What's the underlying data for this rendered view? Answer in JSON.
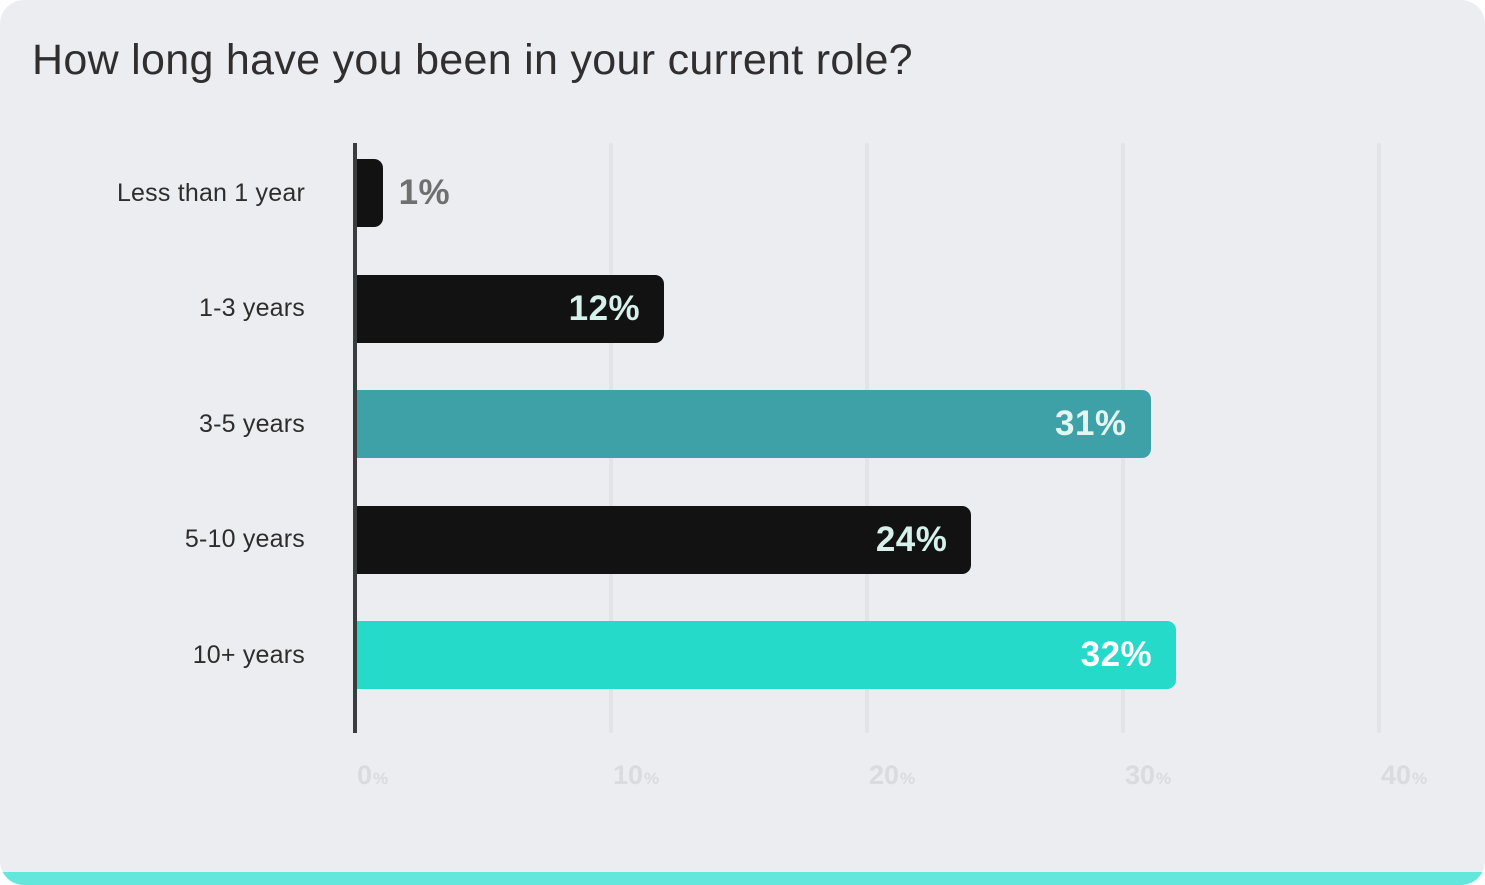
{
  "card": {
    "background": "#ECEDF1",
    "accent_strip_color": "#63E6DB"
  },
  "chart_data": {
    "type": "bar",
    "orientation": "horizontal",
    "title": "How long have you been in your current role?",
    "categories": [
      "Less than 1 year",
      "1-3 years",
      "3-5 years",
      "5-10 years",
      "10+ years"
    ],
    "values": [
      1,
      12,
      31,
      24,
      32
    ],
    "value_labels": [
      "1%",
      "12%",
      "31%",
      "24%",
      "32%"
    ],
    "xlabel": "",
    "ylabel": "",
    "xlim": [
      0,
      40
    ],
    "x_tick_values": [
      0,
      10,
      20,
      30,
      40
    ],
    "x_tick_labels": [
      "0%",
      "10%",
      "20%",
      "30%",
      "40%"
    ],
    "grid": "vertical-gridlines-at-each-x-tick",
    "legend": "none",
    "bar_colors": [
      "#121212",
      "#121212",
      "#3FA1A8",
      "#121212",
      "#25DAC8"
    ],
    "value_label_colors": [
      "#6F6F6F",
      "#D6F0EA",
      "#E4F6F2",
      "#D6F0EA",
      "#FFFFFF"
    ],
    "value_label_placement": [
      "outside",
      "inside",
      "inside",
      "inside",
      "inside"
    ],
    "title_color": "#312E30",
    "category_label_color": "#2E2C2D",
    "tick_label_color": "#D9DBDF",
    "axis_line_color": "#3B3C3E",
    "gridline_color": "#E2E4E8"
  }
}
